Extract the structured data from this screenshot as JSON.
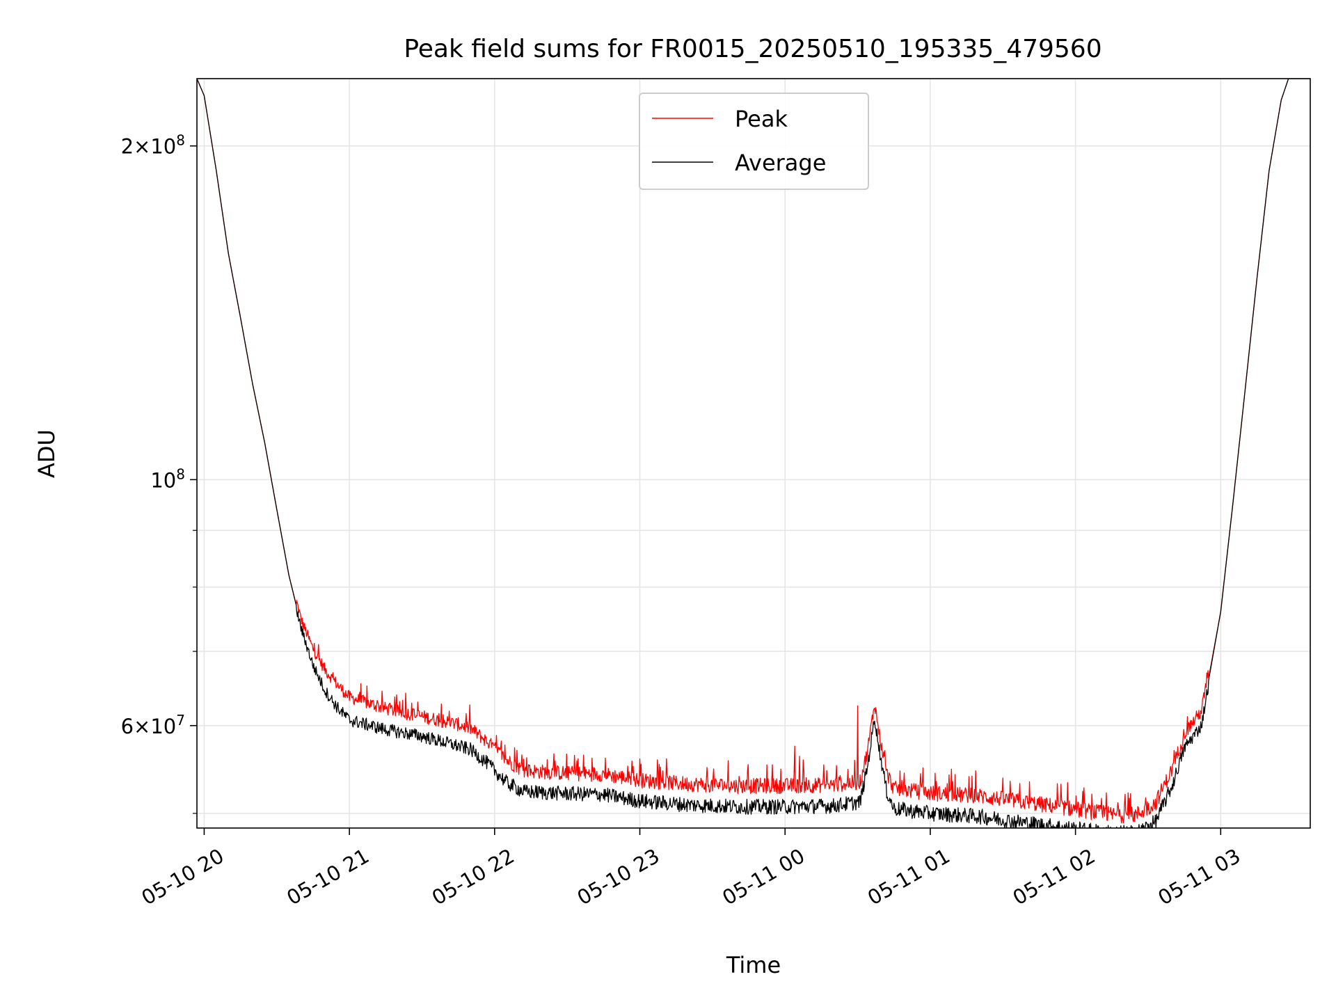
{
  "chart_data": {
    "type": "line",
    "title": "Peak field sums for FR0015_20250510_195335_479560",
    "xlabel": "Time",
    "ylabel": "ADU",
    "y_scale": "log",
    "grid": true,
    "legend_position": "top-center",
    "x_range": [
      "2025-05-10T19:57",
      "2025-05-11T03:37"
    ],
    "y_range": [
      48500000,
      230000000
    ],
    "x_ticks": [
      {
        "value": "2025-05-10T20:00",
        "label": "05-10 20"
      },
      {
        "value": "2025-05-10T21:00",
        "label": "05-10 21"
      },
      {
        "value": "2025-05-10T22:00",
        "label": "05-10 22"
      },
      {
        "value": "2025-05-10T23:00",
        "label": "05-10 23"
      },
      {
        "value": "2025-05-11T00:00",
        "label": "05-11 00"
      },
      {
        "value": "2025-05-11T01:00",
        "label": "05-11 01"
      },
      {
        "value": "2025-05-11T02:00",
        "label": "05-11 02"
      },
      {
        "value": "2025-05-11T03:00",
        "label": "05-11 03"
      }
    ],
    "y_ticks_major": [
      {
        "value": 200000000,
        "mantissa": "2",
        "exponent": "8"
      },
      {
        "value": 100000000,
        "mantissa": "",
        "exponent": "8"
      },
      {
        "value": 60000000,
        "mantissa": "6",
        "exponent": "7"
      }
    ],
    "y_ticks_minor": [
      50000000,
      70000000,
      80000000,
      90000000
    ],
    "series": [
      {
        "name": "Peak",
        "color": "#ff0000",
        "noise": [
          0,
          1700000
        ],
        "points": [
          [
            "2025-05-10T19:57",
            230000000
          ],
          [
            "2025-05-10T20:00",
            222000000
          ],
          [
            "2025-05-10T20:05",
            190000000
          ],
          [
            "2025-05-10T20:10",
            160000000
          ],
          [
            "2025-05-10T20:15",
            140000000
          ],
          [
            "2025-05-10T20:20",
            122000000
          ],
          [
            "2025-05-10T20:25",
            108000000
          ],
          [
            "2025-05-10T20:30",
            94000000
          ],
          [
            "2025-05-10T20:35",
            82000000
          ],
          [
            "2025-05-10T20:40",
            74000000
          ],
          [
            "2025-05-10T20:45",
            69500000
          ],
          [
            "2025-05-10T20:50",
            66500000
          ],
          [
            "2025-05-10T20:55",
            64500000
          ],
          [
            "2025-05-10T21:00",
            62800000
          ],
          [
            "2025-05-10T21:15",
            61300000
          ],
          [
            "2025-05-10T21:30",
            60300000
          ],
          [
            "2025-05-10T21:45",
            59300000
          ],
          [
            "2025-05-10T21:50",
            58800000
          ],
          [
            "2025-05-10T21:57",
            57200000
          ],
          [
            "2025-05-10T22:05",
            55000000
          ],
          [
            "2025-05-10T22:12",
            53800000
          ],
          [
            "2025-05-10T22:30",
            53500000
          ],
          [
            "2025-05-10T22:45",
            53400000
          ],
          [
            "2025-05-10T23:00",
            52700000
          ],
          [
            "2025-05-10T23:20",
            52300000
          ],
          [
            "2025-05-10T23:40",
            52100000
          ],
          [
            "2025-05-11T00:00",
            52100000
          ],
          [
            "2025-05-11T00:20",
            52200000
          ],
          [
            "2025-05-11T00:31",
            52500000
          ],
          [
            "2025-05-11T00:34",
            56000000
          ],
          [
            "2025-05-11T00:37",
            62000000
          ],
          [
            "2025-05-11T00:39",
            58000000
          ],
          [
            "2025-05-11T00:42",
            53500000
          ],
          [
            "2025-05-11T00:45",
            51800000
          ],
          [
            "2025-05-11T01:00",
            51300000
          ],
          [
            "2025-05-11T01:20",
            51000000
          ],
          [
            "2025-05-11T01:40",
            50300000
          ],
          [
            "2025-05-11T02:00",
            49600000
          ],
          [
            "2025-05-11T02:15",
            49000000
          ],
          [
            "2025-05-11T02:25",
            49000000
          ],
          [
            "2025-05-11T02:33",
            50200000
          ],
          [
            "2025-05-11T02:40",
            54000000
          ],
          [
            "2025-05-11T02:45",
            58200000
          ],
          [
            "2025-05-11T02:52",
            61000000
          ],
          [
            "2025-05-11T03:00",
            76000000
          ],
          [
            "2025-05-11T03:05",
            95000000
          ],
          [
            "2025-05-11T03:10",
            120000000
          ],
          [
            "2025-05-11T03:15",
            152000000
          ],
          [
            "2025-05-11T03:20",
            190000000
          ],
          [
            "2025-05-11T03:25",
            220000000
          ],
          [
            "2025-05-11T03:28",
            230000000
          ],
          [
            "2025-05-11T03:37",
            230000000
          ]
        ],
        "spikes": [
          [
            "2025-05-10T23:41",
            54000000
          ],
          [
            "2025-05-11T00:04",
            57500000
          ],
          [
            "2025-05-11T00:06",
            56300000
          ],
          [
            "2025-05-11T00:16",
            55300000
          ],
          [
            "2025-05-11T00:30",
            62500000
          ],
          [
            "2025-05-11T00:26",
            54800000
          ]
        ]
      },
      {
        "name": "Average",
        "color": "#000000",
        "noise": [
          -1300000,
          300000
        ],
        "points": [
          [
            "2025-05-10T19:57",
            230000000
          ],
          [
            "2025-05-10T20:00",
            222000000
          ],
          [
            "2025-05-10T20:05",
            190000000
          ],
          [
            "2025-05-10T20:10",
            160000000
          ],
          [
            "2025-05-10T20:15",
            140000000
          ],
          [
            "2025-05-10T20:20",
            122000000
          ],
          [
            "2025-05-10T20:25",
            108000000
          ],
          [
            "2025-05-10T20:30",
            94000000
          ],
          [
            "2025-05-10T20:35",
            82000000
          ],
          [
            "2025-05-10T20:40",
            74000000
          ],
          [
            "2025-05-10T20:45",
            68500000
          ],
          [
            "2025-05-10T20:50",
            65000000
          ],
          [
            "2025-05-10T20:55",
            62800000
          ],
          [
            "2025-05-10T21:00",
            61200000
          ],
          [
            "2025-05-10T21:15",
            60000000
          ],
          [
            "2025-05-10T21:30",
            59200000
          ],
          [
            "2025-05-10T21:45",
            58000000
          ],
          [
            "2025-05-10T21:50",
            57600000
          ],
          [
            "2025-05-10T21:57",
            56000000
          ],
          [
            "2025-05-10T22:05",
            53800000
          ],
          [
            "2025-05-10T22:12",
            52800000
          ],
          [
            "2025-05-10T22:30",
            52600000
          ],
          [
            "2025-05-10T22:45",
            52500000
          ],
          [
            "2025-05-10T23:00",
            51800000
          ],
          [
            "2025-05-10T23:20",
            51400000
          ],
          [
            "2025-05-10T23:40",
            51200000
          ],
          [
            "2025-05-11T00:00",
            51200000
          ],
          [
            "2025-05-11T00:20",
            51300000
          ],
          [
            "2025-05-11T00:31",
            51700000
          ],
          [
            "2025-05-11T00:34",
            55500000
          ],
          [
            "2025-05-11T00:37",
            61500000
          ],
          [
            "2025-05-11T00:39",
            57500000
          ],
          [
            "2025-05-11T00:42",
            52800000
          ],
          [
            "2025-05-11T00:45",
            51000000
          ],
          [
            "2025-05-11T01:00",
            50500000
          ],
          [
            "2025-05-11T01:20",
            50200000
          ],
          [
            "2025-05-11T01:40",
            49500000
          ],
          [
            "2025-05-11T02:00",
            48900000
          ],
          [
            "2025-05-11T02:15",
            48500000
          ],
          [
            "2025-05-11T02:25",
            48500000
          ],
          [
            "2025-05-11T02:33",
            49600000
          ],
          [
            "2025-05-11T02:40",
            53500000
          ],
          [
            "2025-05-11T02:45",
            57800000
          ],
          [
            "2025-05-11T02:52",
            60500000
          ],
          [
            "2025-05-11T03:00",
            76000000
          ],
          [
            "2025-05-11T03:05",
            95000000
          ],
          [
            "2025-05-11T03:10",
            120000000
          ],
          [
            "2025-05-11T03:15",
            152000000
          ],
          [
            "2025-05-11T03:20",
            190000000
          ],
          [
            "2025-05-11T03:25",
            220000000
          ],
          [
            "2025-05-11T03:28",
            230000000
          ],
          [
            "2025-05-11T03:37",
            230000000
          ]
        ],
        "spikes": []
      }
    ]
  }
}
